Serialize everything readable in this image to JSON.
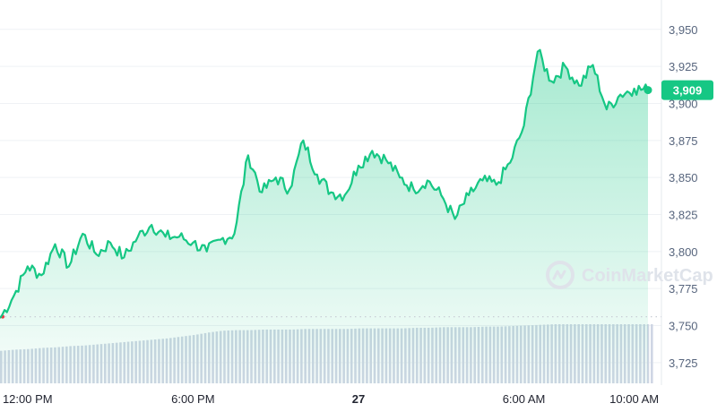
{
  "watermark": "CoinMarketCap",
  "colors": {
    "line": "#16c784",
    "area_top": "#16c784",
    "grid": "#eff2f5",
    "volume": "#cfd6e4",
    "baseline": "#c9ced6",
    "baseline_dot": "#ea3943"
  },
  "chart_data": {
    "type": "area",
    "x": [
      "11:00",
      "11:30",
      "12:00",
      "12:30",
      "13:00",
      "13:30",
      "14:00",
      "14:30",
      "15:00",
      "15:30",
      "16:00",
      "16:30",
      "17:00",
      "17:30",
      "18:00",
      "18:30",
      "19:00",
      "19:30",
      "20:00",
      "20:30",
      "21:00",
      "21:30",
      "22:00",
      "22:30",
      "23:00",
      "23:30",
      "00:00",
      "00:30",
      "01:00",
      "01:30",
      "02:00",
      "02:30",
      "03:00",
      "03:30",
      "04:00",
      "04:30",
      "05:00",
      "05:30",
      "06:00",
      "06:30",
      "07:00",
      "07:30",
      "08:00",
      "08:30",
      "09:00",
      "09:30",
      "10:00",
      "10:30"
    ],
    "values": [
      3755,
      3770,
      3790,
      3784,
      3805,
      3790,
      3812,
      3798,
      3806,
      3796,
      3810,
      3818,
      3810,
      3810,
      3806,
      3800,
      3808,
      3812,
      3865,
      3840,
      3850,
      3842,
      3875,
      3852,
      3840,
      3838,
      3858,
      3868,
      3862,
      3850,
      3842,
      3848,
      3838,
      3822,
      3838,
      3848,
      3845,
      3860,
      3885,
      3935,
      3915,
      3925,
      3912,
      3926,
      3896,
      3906,
      3910,
      3909
    ],
    "series": [
      {
        "values_ref": "values"
      }
    ],
    "volume": [
      0.55,
      0.57,
      0.58,
      0.6,
      0.61,
      0.63,
      0.64,
      0.66,
      0.68,
      0.7,
      0.72,
      0.74,
      0.76,
      0.79,
      0.82,
      0.86,
      0.89,
      0.9,
      0.9,
      0.91,
      0.91,
      0.91,
      0.92,
      0.92,
      0.92,
      0.92,
      0.93,
      0.93,
      0.93,
      0.93,
      0.94,
      0.94,
      0.95,
      0.95,
      0.95,
      0.96,
      0.96,
      0.97,
      0.98,
      0.99,
      1.0,
      1.0,
      1.0,
      1.0,
      1.0,
      1.0,
      1.0,
      1.0
    ],
    "y_ticks": [
      "3,950",
      "3,925",
      "3,900",
      "3,875",
      "3,850",
      "3,825",
      "3,800",
      "3,775",
      "3,750",
      "3,725"
    ],
    "x_ticks": [
      {
        "label": "12:00 PM",
        "at": "12:00",
        "bold": false
      },
      {
        "label": "6:00 PM",
        "at": "18:00",
        "bold": false
      },
      {
        "label": "27",
        "at": "00:00",
        "bold": true
      },
      {
        "label": "6:00 AM",
        "at": "06:00",
        "bold": false
      },
      {
        "label": "10:00 AM",
        "at": "10:00",
        "bold": false
      }
    ],
    "current_value": 3909,
    "current_label": "3,909",
    "baseline_value": 3756,
    "ylim": [
      3711,
      3965
    ],
    "grid": true,
    "title": "",
    "xlabel": "",
    "ylabel": ""
  }
}
